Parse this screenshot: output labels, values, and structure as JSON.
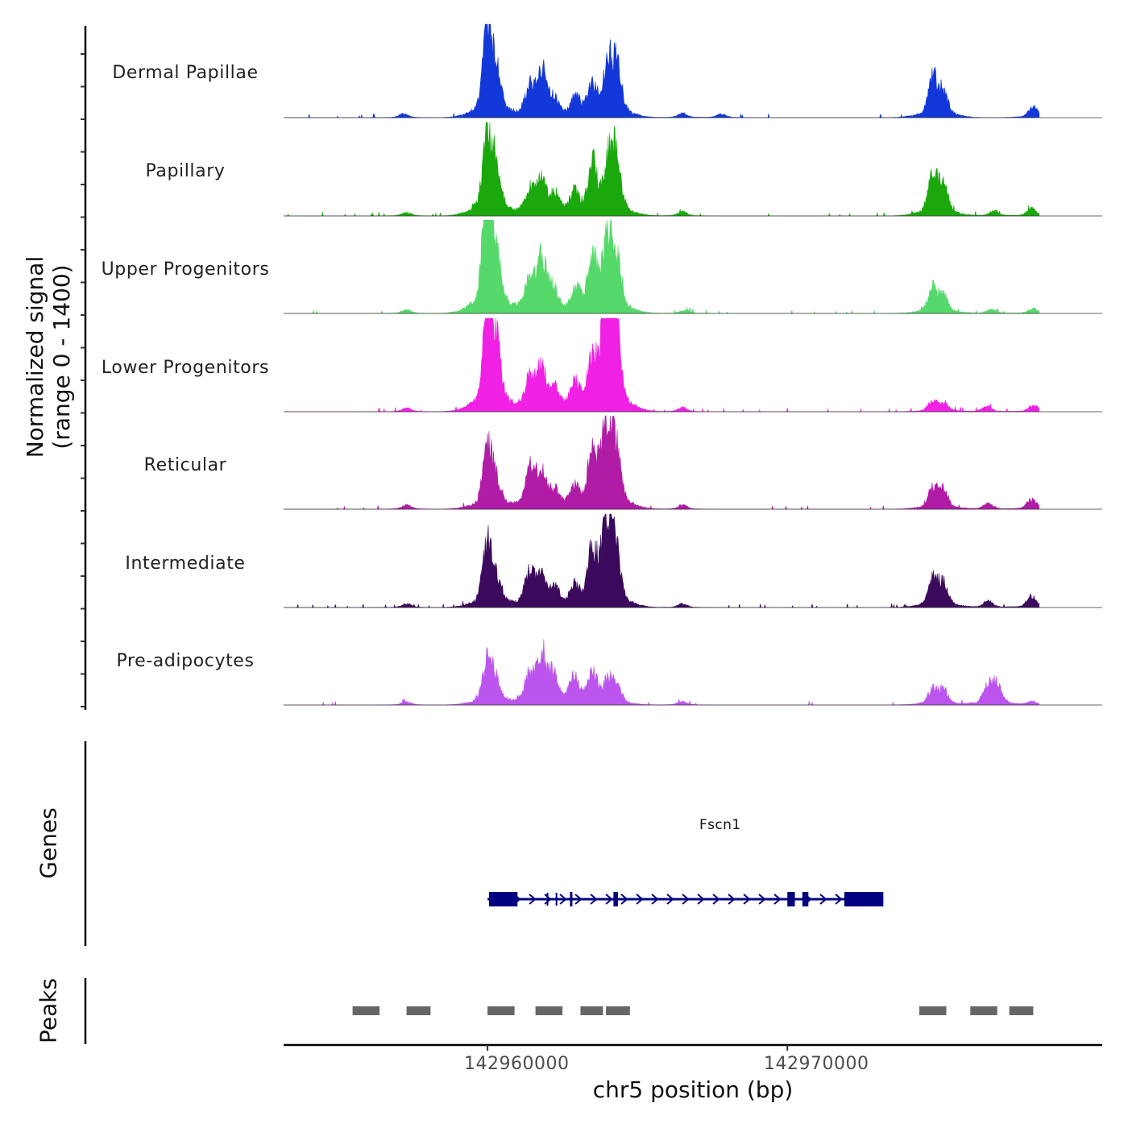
{
  "chart_data": {
    "type": "area",
    "title": "",
    "ylabel_line1": "Normalized signal",
    "ylabel_line2": "(range 0 - 1400)",
    "yrange": [
      0,
      1400
    ],
    "xlabel": "chr5 position (bp)",
    "xlim": [
      142953200,
      142980500
    ],
    "xticks": [
      142960000,
      142970000
    ],
    "xtick_labels": [
      "142960000",
      "142970000"
    ],
    "tracks": [
      {
        "name": "Dermal Papillae",
        "color": "#1338d9",
        "peaks": [
          [
            142960000,
            1220
          ],
          [
            142960300,
            520
          ],
          [
            142961400,
            360
          ],
          [
            142961800,
            650
          ],
          [
            142962200,
            230
          ],
          [
            142962950,
            280
          ],
          [
            142963500,
            380
          ],
          [
            142964000,
            650
          ],
          [
            142964300,
            700
          ],
          [
            142966500,
            60
          ],
          [
            142967800,
            50
          ],
          [
            142974850,
            540
          ],
          [
            142975200,
            330
          ],
          [
            142978200,
            150
          ],
          [
            142957200,
            50
          ]
        ]
      },
      {
        "name": "Papillary",
        "color": "#1aa80d",
        "peaks": [
          [
            142960000,
            1220
          ],
          [
            142960300,
            500
          ],
          [
            142961400,
            330
          ],
          [
            142961800,
            490
          ],
          [
            142962250,
            270
          ],
          [
            142962900,
            290
          ],
          [
            142963500,
            720
          ],
          [
            142964050,
            720
          ],
          [
            142964300,
            660
          ],
          [
            142966500,
            60
          ],
          [
            142974850,
            560
          ],
          [
            142975200,
            380
          ],
          [
            142976900,
            70
          ],
          [
            142978150,
            100
          ],
          [
            142957300,
            50
          ]
        ]
      },
      {
        "name": "Upper Progenitors",
        "color": "#55d96a",
        "peaks": [
          [
            142960000,
            1780
          ],
          [
            142960300,
            640
          ],
          [
            142961400,
            410
          ],
          [
            142961800,
            750
          ],
          [
            142962200,
            290
          ],
          [
            142962950,
            290
          ],
          [
            142963500,
            780
          ],
          [
            142964000,
            940
          ],
          [
            142964300,
            720
          ],
          [
            142966600,
            50
          ],
          [
            142974850,
            340
          ],
          [
            142975200,
            220
          ],
          [
            142976800,
            60
          ],
          [
            142978200,
            70
          ],
          [
            142957300,
            50
          ]
        ]
      },
      {
        "name": "Lower Progenitors",
        "color": "#f020e4",
        "peaks": [
          [
            142960000,
            1500
          ],
          [
            142960300,
            800
          ],
          [
            142961400,
            460
          ],
          [
            142961800,
            570
          ],
          [
            142962250,
            300
          ],
          [
            142962900,
            360
          ],
          [
            142963500,
            610
          ],
          [
            142963950,
            1440
          ],
          [
            142964250,
            1300
          ],
          [
            142966500,
            60
          ],
          [
            142974850,
            120
          ],
          [
            142975200,
            120
          ],
          [
            142976650,
            80
          ],
          [
            142978200,
            90
          ],
          [
            142957300,
            50
          ]
        ]
      },
      {
        "name": "Reticular",
        "color": "#b11ca6",
        "peaks": [
          [
            142960000,
            820
          ],
          [
            142960300,
            320
          ],
          [
            142961400,
            520
          ],
          [
            142961800,
            560
          ],
          [
            142962250,
            230
          ],
          [
            142962900,
            260
          ],
          [
            142963500,
            730
          ],
          [
            142963950,
            1080
          ],
          [
            142964250,
            930
          ],
          [
            142966500,
            60
          ],
          [
            142974850,
            280
          ],
          [
            142975200,
            260
          ],
          [
            142976700,
            80
          ],
          [
            142978150,
            140
          ],
          [
            142957300,
            60
          ]
        ]
      },
      {
        "name": "Intermediate",
        "color": "#3b0a5c",
        "peaks": [
          [
            142960000,
            920
          ],
          [
            142960300,
            310
          ],
          [
            142961400,
            460
          ],
          [
            142961800,
            460
          ],
          [
            142962250,
            230
          ],
          [
            142962900,
            260
          ],
          [
            142963500,
            720
          ],
          [
            142963950,
            1050
          ],
          [
            142964250,
            870
          ],
          [
            142966500,
            50
          ],
          [
            142974850,
            380
          ],
          [
            142975200,
            330
          ],
          [
            142976700,
            90
          ],
          [
            142978150,
            160
          ],
          [
            142957300,
            50
          ]
        ]
      },
      {
        "name": "Pre-adipocytes",
        "color": "#bb55ee",
        "peaks": [
          [
            142960000,
            610
          ],
          [
            142960300,
            280
          ],
          [
            142961400,
            380
          ],
          [
            142961800,
            700
          ],
          [
            142962200,
            420
          ],
          [
            142962900,
            380
          ],
          [
            142963500,
            430
          ],
          [
            142964000,
            300
          ],
          [
            142964300,
            260
          ],
          [
            142966500,
            50
          ],
          [
            142974850,
            210
          ],
          [
            142975200,
            200
          ],
          [
            142976700,
            260
          ],
          [
            142977000,
            270
          ],
          [
            142978150,
            50
          ],
          [
            142957300,
            50
          ]
        ]
      }
    ],
    "genes": [
      {
        "name": "Fscn1",
        "strand": "+",
        "start": 142960000,
        "end": 142973200,
        "exons": [
          [
            142960050,
            142961000
          ],
          [
            142962750,
            142962800
          ],
          [
            142964200,
            142964350
          ],
          [
            142970000,
            142970250
          ],
          [
            142970500,
            142970700
          ],
          [
            142971900,
            142973200
          ]
        ]
      }
    ],
    "peaks_track": [
      [
        142955500,
        142956400
      ],
      [
        142957300,
        142958100
      ],
      [
        142960000,
        142960900
      ],
      [
        142961600,
        142962500
      ],
      [
        142963100,
        142963850
      ],
      [
        142963950,
        142964750
      ],
      [
        142974400,
        142975300
      ],
      [
        142976100,
        142977000
      ],
      [
        142977400,
        142978200
      ]
    ]
  },
  "panel_titles": {
    "genes": "Genes",
    "peaks": "Peaks"
  },
  "colors": {
    "gene": "#000080",
    "peak": "#666666",
    "axis": "#000000"
  }
}
